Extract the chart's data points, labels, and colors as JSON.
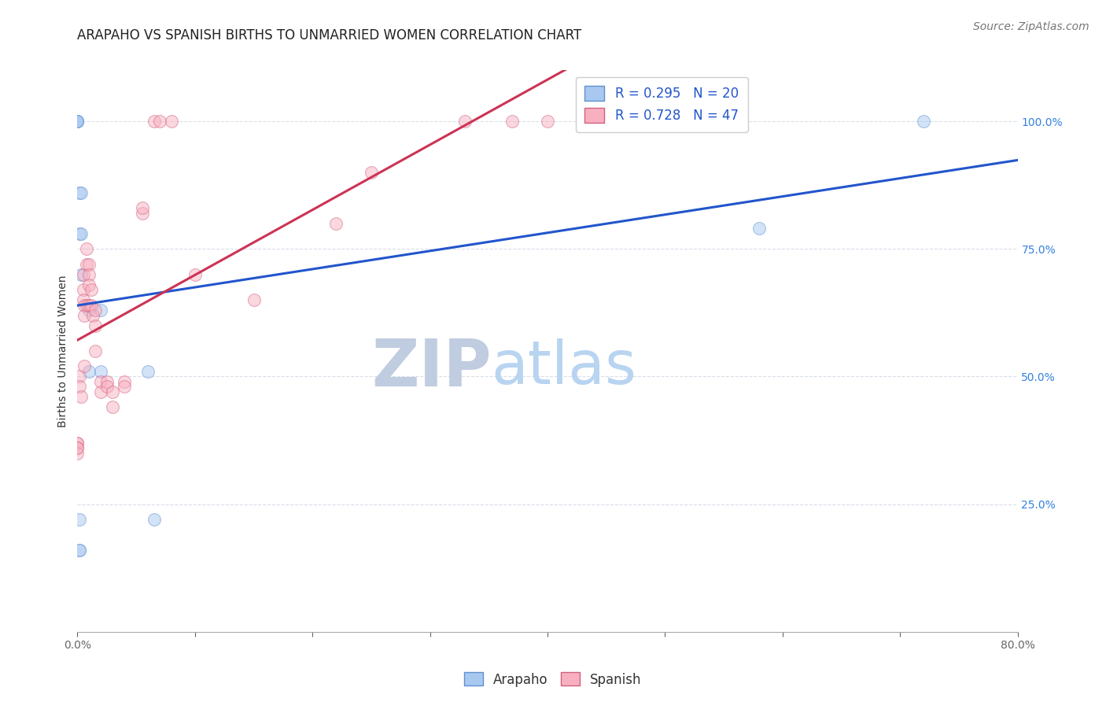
{
  "title": "ARAPAHO VS SPANISH BIRTHS TO UNMARRIED WOMEN CORRELATION CHART",
  "source": "Source: ZipAtlas.com",
  "ylabel": "Births to Unmarried Women",
  "x_left_label": "0.0%",
  "x_right_label": "80.0%",
  "ytick_labels": [
    "25.0%",
    "50.0%",
    "75.0%",
    "100.0%"
  ],
  "ytick_values": [
    0.25,
    0.5,
    0.75,
    1.0
  ],
  "xlim": [
    0.0,
    0.8
  ],
  "ylim": [
    0.0,
    1.1
  ],
  "arapaho_color": "#a8c8f0",
  "arapaho_edge": "#6090d0",
  "spanish_color": "#f8b0c0",
  "spanish_edge": "#d06080",
  "trend_arapaho_color": "#2255cc",
  "trend_spanish_color": "#cc3355",
  "watermark_zip_color": "#c0cce0",
  "watermark_atlas_color": "#b8d4f0",
  "arapaho_R": 0.295,
  "arapaho_N": 20,
  "spanish_R": 0.728,
  "spanish_N": 47,
  "arapaho_x": [
    0.0,
    0.0,
    0.0,
    0.0,
    0.002,
    0.002,
    0.003,
    0.003,
    0.003,
    0.01,
    0.01,
    0.02,
    0.02,
    0.06,
    0.065,
    0.58,
    0.72,
    0.002,
    0.002,
    0.002
  ],
  "arapaho_y": [
    1.0,
    1.0,
    1.0,
    1.0,
    0.86,
    0.78,
    0.7,
    0.86,
    0.78,
    0.63,
    0.51,
    0.51,
    0.63,
    0.51,
    0.22,
    0.79,
    1.0,
    0.16,
    0.22,
    0.16
  ],
  "spanish_x": [
    0.0,
    0.0,
    0.0,
    0.0,
    0.0,
    0.002,
    0.002,
    0.003,
    0.005,
    0.005,
    0.005,
    0.006,
    0.006,
    0.006,
    0.008,
    0.008,
    0.008,
    0.01,
    0.01,
    0.01,
    0.01,
    0.012,
    0.012,
    0.013,
    0.015,
    0.015,
    0.015,
    0.02,
    0.02,
    0.025,
    0.025,
    0.03,
    0.03,
    0.04,
    0.04,
    0.055,
    0.055,
    0.065,
    0.07,
    0.08,
    0.1,
    0.15,
    0.22,
    0.25,
    0.33,
    0.37,
    0.4
  ],
  "spanish_y": [
    0.37,
    0.37,
    0.36,
    0.35,
    0.36,
    0.5,
    0.48,
    0.46,
    0.7,
    0.67,
    0.65,
    0.64,
    0.62,
    0.52,
    0.75,
    0.72,
    0.64,
    0.72,
    0.7,
    0.68,
    0.64,
    0.67,
    0.64,
    0.62,
    0.63,
    0.6,
    0.55,
    0.49,
    0.47,
    0.49,
    0.48,
    0.47,
    0.44,
    0.49,
    0.48,
    0.82,
    0.83,
    1.0,
    1.0,
    1.0,
    0.7,
    0.65,
    0.8,
    0.9,
    1.0,
    1.0,
    1.0
  ],
  "marker_size": 130,
  "alpha": 0.5,
  "grid_color": "#d8dfe8",
  "background_color": "#ffffff",
  "title_fontsize": 12,
  "axis_label_fontsize": 10,
  "tick_fontsize": 10,
  "legend_fontsize": 12,
  "source_fontsize": 10,
  "watermark_zip_fontsize": 60,
  "watermark_atlas_fontsize": 55
}
